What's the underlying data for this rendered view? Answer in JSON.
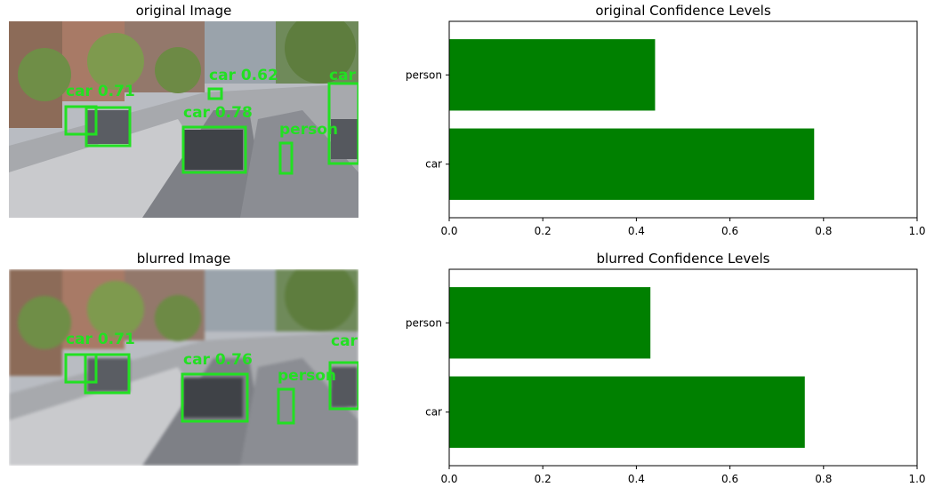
{
  "panels": [
    {
      "image_title": "original Image",
      "chart_data": {
        "type": "bar",
        "orientation": "horizontal",
        "title": "original Confidence Levels",
        "xlabel": "",
        "ylabel": "",
        "categories": [
          "car",
          "person"
        ],
        "values": [
          0.78,
          0.44
        ],
        "xlim": [
          0,
          1.0
        ],
        "xticks": [
          "0.0",
          "0.2",
          "0.4",
          "0.6",
          "0.8",
          "1.0"
        ],
        "bar_color": "#008000",
        "grid": false
      },
      "detections": [
        "car 0.78",
        "car 0.62",
        "car 0.71",
        "person",
        "car"
      ]
    },
    {
      "image_title": "blurred Image",
      "chart_data": {
        "type": "bar",
        "orientation": "horizontal",
        "title": "blurred Confidence Levels",
        "xlabel": "",
        "ylabel": "",
        "categories": [
          "car",
          "person"
        ],
        "values": [
          0.76,
          0.43
        ],
        "xlim": [
          0,
          1.0
        ],
        "xticks": [
          "0.0",
          "0.2",
          "0.4",
          "0.6",
          "0.8",
          "1.0"
        ],
        "bar_color": "#008000",
        "grid": false
      },
      "detections": [
        "car 0.76",
        "car 0.71",
        "person",
        "car"
      ]
    }
  ],
  "colors": {
    "box": "#22e022",
    "bar": "#008000"
  }
}
